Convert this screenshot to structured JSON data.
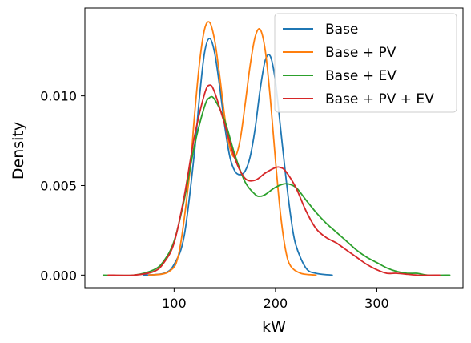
{
  "chart_data": {
    "type": "line",
    "title": "",
    "xlabel": "kW",
    "ylabel": "Density",
    "xlim": [
      12,
      385
    ],
    "ylim": [
      -0.0007,
      0.0149
    ],
    "xticks": [
      100,
      200,
      300
    ],
    "xtick_labels": [
      "100",
      "200",
      "300"
    ],
    "yticks": [
      0.0,
      0.005,
      0.01
    ],
    "ytick_labels": [
      "0.000",
      "0.005",
      "0.010"
    ],
    "legend_position": "top-right",
    "grid": false,
    "series": [
      {
        "name": "Base",
        "color": "#1f77b4",
        "x": [
          70,
          90,
          100,
          110,
          120,
          125,
          130,
          135,
          140,
          145,
          150,
          155,
          160,
          165,
          170,
          175,
          180,
          185,
          190,
          195,
          200,
          205,
          210,
          215,
          220,
          230,
          240,
          256
        ],
        "y": [
          0,
          0.0001,
          0.0006,
          0.0022,
          0.0068,
          0.0099,
          0.0124,
          0.0132,
          0.0124,
          0.0105,
          0.0083,
          0.0066,
          0.0058,
          0.0056,
          0.0058,
          0.0066,
          0.0082,
          0.0104,
          0.012,
          0.0122,
          0.0108,
          0.0082,
          0.0056,
          0.0033,
          0.0017,
          0.0004,
          0.0001,
          0
        ]
      },
      {
        "name": "Base + PV",
        "color": "#ff7f0e",
        "x": [
          75,
          95,
          105,
          115,
          120,
          125,
          130,
          135,
          140,
          145,
          150,
          155,
          160,
          165,
          170,
          175,
          180,
          185,
          190,
          195,
          200,
          205,
          210,
          215,
          225,
          240
        ],
        "y": [
          0,
          0.0002,
          0.0013,
          0.0055,
          0.0088,
          0.0118,
          0.0137,
          0.0141,
          0.0131,
          0.0111,
          0.0088,
          0.0071,
          0.0066,
          0.0075,
          0.0095,
          0.0117,
          0.0133,
          0.0137,
          0.0125,
          0.0098,
          0.0064,
          0.0034,
          0.0014,
          0.0005,
          0.0001,
          0
        ]
      },
      {
        "name": "Base + EV",
        "color": "#2ca02c",
        "x": [
          30,
          60,
          80,
          90,
          100,
          110,
          120,
          130,
          135,
          140,
          150,
          160,
          170,
          180,
          185,
          190,
          200,
          210,
          220,
          230,
          240,
          250,
          260,
          270,
          280,
          290,
          300,
          310,
          320,
          330,
          340,
          350,
          372
        ],
        "y": [
          0,
          0,
          0.0003,
          0.0008,
          0.0019,
          0.0042,
          0.0072,
          0.0094,
          0.0099,
          0.0098,
          0.0086,
          0.0067,
          0.0052,
          0.0045,
          0.0044,
          0.0045,
          0.0049,
          0.0051,
          0.0049,
          0.0042,
          0.0035,
          0.0029,
          0.0024,
          0.0019,
          0.0014,
          0.001,
          0.0007,
          0.0004,
          0.0002,
          0.0001,
          0.0001,
          0,
          0
        ]
      },
      {
        "name": "Base + PV + EV",
        "color": "#d62728",
        "x": [
          35,
          60,
          80,
          90,
          100,
          110,
          120,
          130,
          135,
          140,
          150,
          160,
          170,
          180,
          190,
          200,
          205,
          210,
          220,
          230,
          240,
          250,
          260,
          270,
          280,
          290,
          300,
          310,
          320,
          340,
          362
        ],
        "y": [
          0,
          0,
          0.0002,
          0.0007,
          0.0018,
          0.0044,
          0.0077,
          0.0101,
          0.0106,
          0.0102,
          0.0084,
          0.0065,
          0.0054,
          0.0053,
          0.0057,
          0.006,
          0.006,
          0.0058,
          0.0049,
          0.0036,
          0.0026,
          0.0021,
          0.0018,
          0.0014,
          0.001,
          0.0006,
          0.0003,
          0.0001,
          0.0001,
          0,
          0
        ]
      }
    ]
  }
}
